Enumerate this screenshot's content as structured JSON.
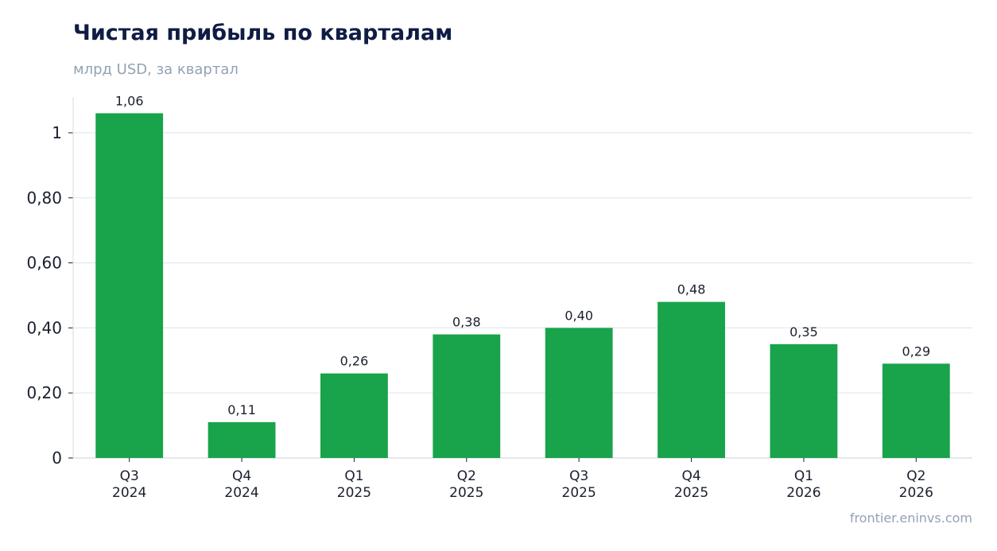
{
  "header": {
    "title": "Чистая прибыль по кварталам",
    "subtitle": "млрд USD, за квартал"
  },
  "footer": {
    "source": "frontier.eninvs.com"
  },
  "chart_data": {
    "type": "bar",
    "title": "Чистая прибыль по кварталам",
    "subtitle": "млрд USD, за квартал",
    "xlabel": "",
    "ylabel": "",
    "categories": [
      [
        "Q3",
        "2024"
      ],
      [
        "Q4",
        "2024"
      ],
      [
        "Q1",
        "2025"
      ],
      [
        "Q2",
        "2025"
      ],
      [
        "Q3",
        "2025"
      ],
      [
        "Q4",
        "2025"
      ],
      [
        "Q1",
        "2026"
      ],
      [
        "Q2",
        "2026"
      ]
    ],
    "values": [
      1.06,
      0.11,
      0.26,
      0.38,
      0.4,
      0.48,
      0.35,
      0.29
    ],
    "value_labels": [
      "1,06",
      "0,11",
      "0,26",
      "0,38",
      "0,40",
      "0,48",
      "0,35",
      "0,29"
    ],
    "ylim": [
      0,
      1.11
    ],
    "y_ticks": [
      0,
      0.2,
      0.4,
      0.6,
      0.8,
      1
    ],
    "y_tick_labels": [
      "0",
      "0,20",
      "0,40",
      "0,60",
      "0,80",
      "1"
    ],
    "grid": "horizontal",
    "legend": "none",
    "colors": {
      "bar": "#19a34a",
      "grid": "#e3e8ee",
      "axis": "#d5dbe3",
      "title": "#0f1c44",
      "muted": "#93a2b5",
      "text": "#1a1f2e"
    }
  }
}
